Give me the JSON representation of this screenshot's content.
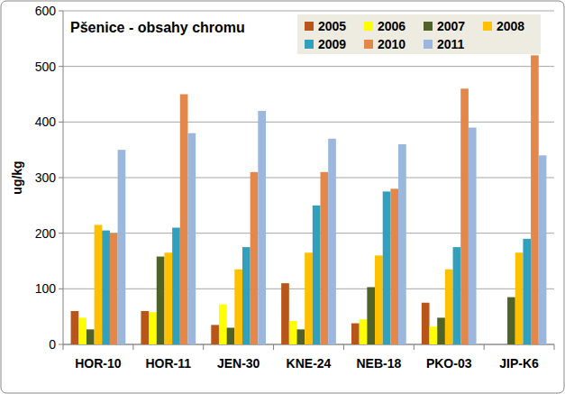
{
  "chart_data": {
    "type": "bar",
    "title": "Pšenice - obsahy chromu",
    "y_label": "ug/kg",
    "categories": [
      "HOR-10",
      "HOR-11",
      "JEN-30",
      "KNE-24",
      "NEB-18",
      "PKO-03",
      "JIP-K6"
    ],
    "series": [
      {
        "name": "2005",
        "color": "#b8561a",
        "values": [
          60,
          60,
          35,
          110,
          38,
          75,
          null
        ]
      },
      {
        "name": "2006",
        "color": "#ffff00",
        "values": [
          48,
          58,
          72,
          42,
          45,
          32,
          null
        ]
      },
      {
        "name": "2007",
        "color": "#4f6228",
        "values": [
          27,
          158,
          30,
          27,
          103,
          48,
          85
        ]
      },
      {
        "name": "2008",
        "color": "#ffc000",
        "values": [
          215,
          165,
          135,
          165,
          160,
          135,
          165
        ]
      },
      {
        "name": "2009",
        "color": "#31a0bd",
        "values": [
          205,
          210,
          175,
          250,
          275,
          175,
          190
        ]
      },
      {
        "name": "2010",
        "color": "#e3874a",
        "values": [
          200,
          450,
          310,
          310,
          280,
          460,
          520
        ]
      },
      {
        "name": "2011",
        "color": "#9bb7de",
        "values": [
          350,
          380,
          420,
          370,
          360,
          390,
          340
        ]
      }
    ],
    "ylim": [
      0,
      600
    ],
    "yticks": [
      0,
      100,
      200,
      300,
      400,
      500,
      600
    ],
    "grid": true,
    "legend": "top-right"
  }
}
